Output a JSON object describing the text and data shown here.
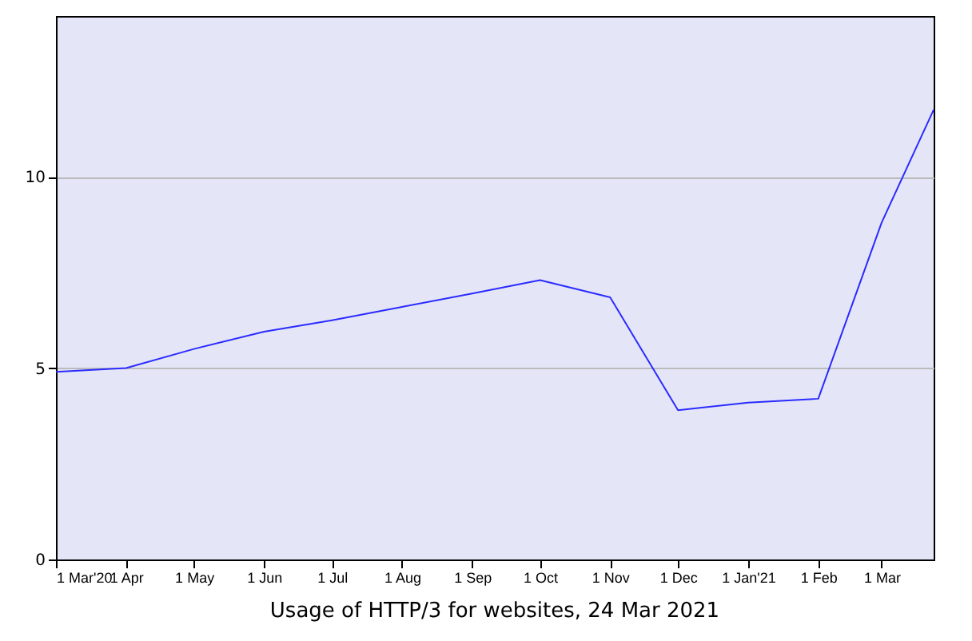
{
  "chart_data": {
    "type": "line",
    "title": "Usage of HTTP/3 for websites, 24 Mar 2021",
    "x": [
      "2020-03-01",
      "2020-04-01",
      "2020-05-01",
      "2020-06-01",
      "2020-07-01",
      "2020-08-01",
      "2020-09-01",
      "2020-10-01",
      "2020-11-01",
      "2020-12-01",
      "2021-01-01",
      "2021-02-01",
      "2021-03-01",
      "2021-03-24"
    ],
    "series": [
      {
        "color": "#2b2bff",
        "values": [
          4.9,
          5.0,
          5.5,
          5.95,
          6.25,
          6.6,
          6.95,
          7.3,
          6.85,
          3.9,
          4.1,
          4.2,
          8.8,
          11.75
        ]
      }
    ],
    "xlim": [
      "2020-03-01",
      "2021-03-24"
    ],
    "xticks": [
      {
        "value": "2020-03-01",
        "label": "1 Mar'20"
      },
      {
        "value": "2020-04-01",
        "label": "1 Apr"
      },
      {
        "value": "2020-05-01",
        "label": "1 May"
      },
      {
        "value": "2020-06-01",
        "label": "1 Jun"
      },
      {
        "value": "2020-07-01",
        "label": "1 Jul"
      },
      {
        "value": "2020-08-01",
        "label": "1 Aug"
      },
      {
        "value": "2020-09-01",
        "label": "1 Sep"
      },
      {
        "value": "2020-10-01",
        "label": "1 Oct"
      },
      {
        "value": "2020-11-01",
        "label": "1 Nov"
      },
      {
        "value": "2020-12-01",
        "label": "1 Dec"
      },
      {
        "value": "2021-01-01",
        "label": "1 Jan'21"
      },
      {
        "value": "2021-02-01",
        "label": "1 Feb"
      },
      {
        "value": "2021-03-01",
        "label": "1 Mar"
      }
    ],
    "ylim": [
      0,
      14.2
    ],
    "yticks": [
      0,
      5,
      10
    ],
    "grid": "y"
  }
}
